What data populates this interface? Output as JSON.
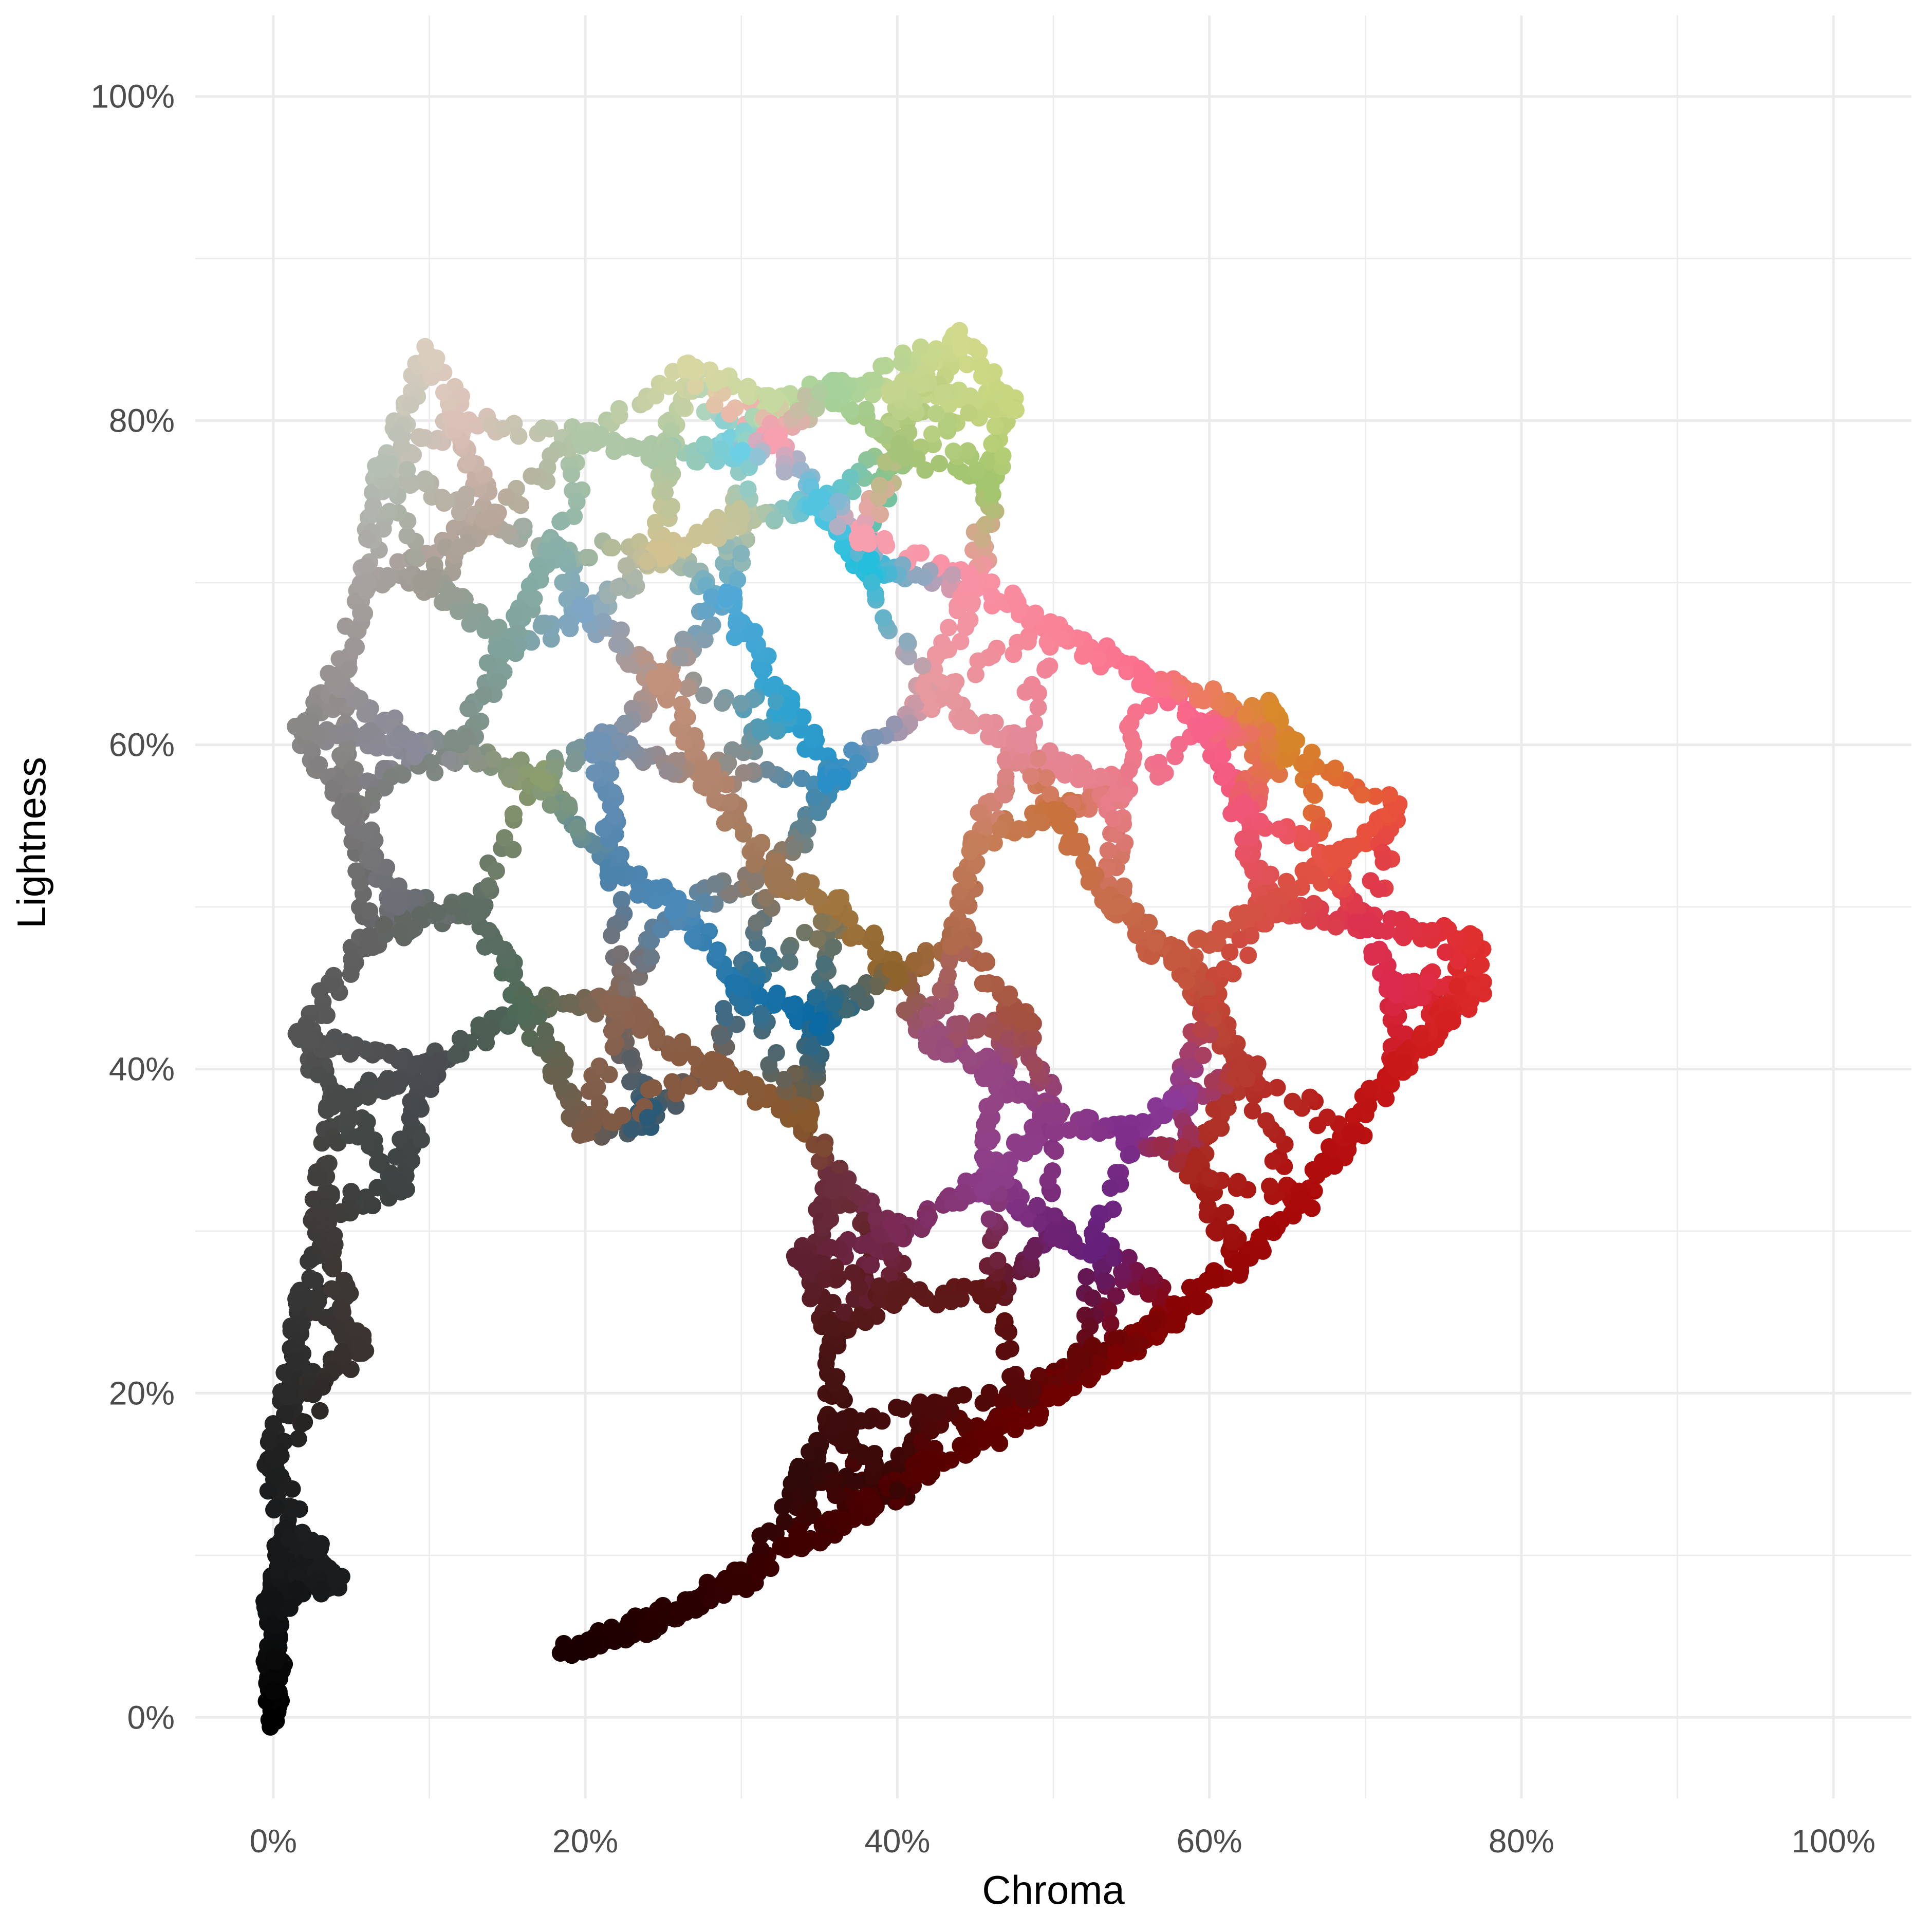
{
  "chart_data": {
    "type": "scatter",
    "title": "",
    "xlabel": "Chroma",
    "ylabel": "Lightness",
    "x_tick_labels": [
      "0%",
      "20%",
      "40%",
      "60%",
      "80%",
      "100%"
    ],
    "y_tick_labels": [
      "0%",
      "20%",
      "40%",
      "60%",
      "80%",
      "100%"
    ],
    "xlim": [
      -0.05,
      1.05
    ],
    "ylim": [
      -0.05,
      1.05
    ],
    "grid": true,
    "legend": "none",
    "point_color_encoding": "each point is filled with the color it represents",
    "series": [
      {
        "points": [
          {
            "x": 0.0,
            "y": 0.0,
            "color": "#000000"
          },
          {
            "x": 0.0,
            "y": 0.016,
            "color": "#050505"
          },
          {
            "x": 0.0,
            "y": 0.037,
            "color": "#0a0a0a"
          },
          {
            "x": 0.0,
            "y": 0.07,
            "color": "#111315"
          },
          {
            "x": 0.005,
            "y": 0.095,
            "color": "#16181a"
          },
          {
            "x": 0.01,
            "y": 0.11,
            "color": "#1a1c1d"
          },
          {
            "x": 0.025,
            "y": 0.105,
            "color": "#1c1d1f"
          },
          {
            "x": 0.04,
            "y": 0.085,
            "color": "#1b1c1e"
          },
          {
            "x": 0.0,
            "y": 0.16,
            "color": "#202020"
          },
          {
            "x": 0.01,
            "y": 0.2,
            "color": "#2a2a2a"
          },
          {
            "x": 0.02,
            "y": 0.26,
            "color": "#353535"
          },
          {
            "x": 0.03,
            "y": 0.31,
            "color": "#3e3b3a"
          },
          {
            "x": 0.055,
            "y": 0.23,
            "color": "#3b3330"
          },
          {
            "x": 0.04,
            "y": 0.38,
            "color": "#474a48"
          },
          {
            "x": 0.02,
            "y": 0.42,
            "color": "#545454"
          },
          {
            "x": 0.06,
            "y": 0.48,
            "color": "#626262"
          },
          {
            "x": 0.05,
            "y": 0.56,
            "color": "#7a7878"
          },
          {
            "x": 0.02,
            "y": 0.61,
            "color": "#8a8787"
          },
          {
            "x": 0.04,
            "y": 0.64,
            "color": "#989393"
          },
          {
            "x": 0.06,
            "y": 0.7,
            "color": "#a7a19f"
          },
          {
            "x": 0.07,
            "y": 0.77,
            "color": "#b6bfb4"
          },
          {
            "x": 0.1,
            "y": 0.84,
            "color": "#d9cdbe"
          },
          {
            "x": 0.12,
            "y": 0.8,
            "color": "#dcc1b8"
          },
          {
            "x": 0.14,
            "y": 0.74,
            "color": "#b9a79b"
          },
          {
            "x": 0.1,
            "y": 0.7,
            "color": "#9e9c92"
          },
          {
            "x": 0.09,
            "y": 0.6,
            "color": "#8a8a9a"
          },
          {
            "x": 0.12,
            "y": 0.6,
            "color": "#7f8d86"
          },
          {
            "x": 0.15,
            "y": 0.66,
            "color": "#7fa39b"
          },
          {
            "x": 0.17,
            "y": 0.58,
            "color": "#8c9d6e"
          },
          {
            "x": 0.08,
            "y": 0.5,
            "color": "#6d6e76"
          },
          {
            "x": 0.13,
            "y": 0.5,
            "color": "#5f6e65"
          },
          {
            "x": 0.16,
            "y": 0.44,
            "color": "#4e6b58"
          },
          {
            "x": 0.1,
            "y": 0.4,
            "color": "#4b4c50"
          },
          {
            "x": 0.08,
            "y": 0.33,
            "color": "#3d4443"
          },
          {
            "x": 0.18,
            "y": 0.72,
            "color": "#88b0a8"
          },
          {
            "x": 0.2,
            "y": 0.79,
            "color": "#b0c7a7"
          },
          {
            "x": 0.25,
            "y": 0.78,
            "color": "#a9c7a4"
          },
          {
            "x": 0.27,
            "y": 0.83,
            "color": "#d8d7a2"
          },
          {
            "x": 0.32,
            "y": 0.81,
            "color": "#c6d9a0"
          },
          {
            "x": 0.36,
            "y": 0.82,
            "color": "#a5d29b"
          },
          {
            "x": 0.4,
            "y": 0.82,
            "color": "#c3d58f"
          },
          {
            "x": 0.44,
            "y": 0.85,
            "color": "#d1d98a"
          },
          {
            "x": 0.47,
            "y": 0.81,
            "color": "#c8d67f"
          },
          {
            "x": 0.4,
            "y": 0.78,
            "color": "#a6c479"
          },
          {
            "x": 0.46,
            "y": 0.76,
            "color": "#a3c56d"
          },
          {
            "x": 0.3,
            "y": 0.78,
            "color": "#6ccfe3"
          },
          {
            "x": 0.35,
            "y": 0.75,
            "color": "#53c4e0"
          },
          {
            "x": 0.38,
            "y": 0.71,
            "color": "#25bfdd"
          },
          {
            "x": 0.29,
            "y": 0.69,
            "color": "#4fa8d6"
          },
          {
            "x": 0.33,
            "y": 0.62,
            "color": "#2ea3cf"
          },
          {
            "x": 0.36,
            "y": 0.58,
            "color": "#298fc6"
          },
          {
            "x": 0.3,
            "y": 0.74,
            "color": "#c4c49b"
          },
          {
            "x": 0.25,
            "y": 0.72,
            "color": "#d2c28f"
          },
          {
            "x": 0.2,
            "y": 0.68,
            "color": "#7fa7c5"
          },
          {
            "x": 0.21,
            "y": 0.6,
            "color": "#6e93b5"
          },
          {
            "x": 0.22,
            "y": 0.52,
            "color": "#4c83ad"
          },
          {
            "x": 0.26,
            "y": 0.5,
            "color": "#4b8ab8"
          },
          {
            "x": 0.3,
            "y": 0.45,
            "color": "#1d74a8"
          },
          {
            "x": 0.35,
            "y": 0.43,
            "color": "#0b6aa3"
          },
          {
            "x": 0.24,
            "y": 0.37,
            "color": "#2b5a77"
          },
          {
            "x": 0.25,
            "y": 0.64,
            "color": "#c3927c"
          },
          {
            "x": 0.28,
            "y": 0.58,
            "color": "#b3856e"
          },
          {
            "x": 0.32,
            "y": 0.52,
            "color": "#9e7654"
          },
          {
            "x": 0.36,
            "y": 0.5,
            "color": "#a0763e"
          },
          {
            "x": 0.4,
            "y": 0.46,
            "color": "#8e642c"
          },
          {
            "x": 0.22,
            "y": 0.44,
            "color": "#8b6551"
          },
          {
            "x": 0.28,
            "y": 0.4,
            "color": "#8a5a3e"
          },
          {
            "x": 0.34,
            "y": 0.37,
            "color": "#87592d"
          },
          {
            "x": 0.2,
            "y": 0.36,
            "color": "#7b5a47"
          },
          {
            "x": 0.32,
            "y": 0.79,
            "color": "#f7a0b0"
          },
          {
            "x": 0.38,
            "y": 0.73,
            "color": "#f79fae"
          },
          {
            "x": 0.45,
            "y": 0.7,
            "color": "#f891a3"
          },
          {
            "x": 0.5,
            "y": 0.67,
            "color": "#f98397"
          },
          {
            "x": 0.56,
            "y": 0.64,
            "color": "#fb6f8c"
          },
          {
            "x": 0.6,
            "y": 0.61,
            "color": "#f7628a"
          },
          {
            "x": 0.42,
            "y": 0.63,
            "color": "#e69a9f"
          },
          {
            "x": 0.48,
            "y": 0.6,
            "color": "#e48997"
          },
          {
            "x": 0.54,
            "y": 0.57,
            "color": "#e87e8a"
          },
          {
            "x": 0.62,
            "y": 0.56,
            "color": "#f05678"
          },
          {
            "x": 0.64,
            "y": 0.62,
            "color": "#d88a2b"
          },
          {
            "x": 0.65,
            "y": 0.6,
            "color": "#d6852a"
          },
          {
            "x": 0.45,
            "y": 0.54,
            "color": "#c57e5a"
          },
          {
            "x": 0.5,
            "y": 0.56,
            "color": "#c8733e"
          },
          {
            "x": 0.54,
            "y": 0.5,
            "color": "#c76e4c"
          },
          {
            "x": 0.58,
            "y": 0.47,
            "color": "#c5593f"
          },
          {
            "x": 0.44,
            "y": 0.48,
            "color": "#b06a4c"
          },
          {
            "x": 0.48,
            "y": 0.43,
            "color": "#a5513f"
          },
          {
            "x": 0.6,
            "y": 0.44,
            "color": "#c24535"
          },
          {
            "x": 0.64,
            "y": 0.5,
            "color": "#d84f45"
          },
          {
            "x": 0.68,
            "y": 0.53,
            "color": "#e55240"
          },
          {
            "x": 0.72,
            "y": 0.56,
            "color": "#e9503c"
          },
          {
            "x": 0.7,
            "y": 0.49,
            "color": "#dc3250"
          },
          {
            "x": 0.72,
            "y": 0.45,
            "color": "#db2a4b"
          },
          {
            "x": 0.62,
            "y": 0.4,
            "color": "#b53a30"
          },
          {
            "x": 0.59,
            "y": 0.34,
            "color": "#a8281f"
          },
          {
            "x": 0.42,
            "y": 0.42,
            "color": "#9a4f79"
          },
          {
            "x": 0.46,
            "y": 0.4,
            "color": "#954682"
          },
          {
            "x": 0.5,
            "y": 0.37,
            "color": "#8e3b86"
          },
          {
            "x": 0.55,
            "y": 0.36,
            "color": "#7f2f8b"
          },
          {
            "x": 0.58,
            "y": 0.38,
            "color": "#8b3a99"
          },
          {
            "x": 0.5,
            "y": 0.3,
            "color": "#6d2273"
          },
          {
            "x": 0.53,
            "y": 0.29,
            "color": "#64207a"
          },
          {
            "x": 0.46,
            "y": 0.33,
            "color": "#8c3d8a"
          },
          {
            "x": 0.36,
            "y": 0.33,
            "color": "#6b2e3c"
          },
          {
            "x": 0.34,
            "y": 0.28,
            "color": "#5e2030"
          },
          {
            "x": 0.4,
            "y": 0.3,
            "color": "#7a2a55"
          },
          {
            "x": 0.36,
            "y": 0.24,
            "color": "#4f1717"
          },
          {
            "x": 0.4,
            "y": 0.26,
            "color": "#5c1a1a"
          },
          {
            "x": 0.46,
            "y": 0.26,
            "color": "#611515"
          },
          {
            "x": 0.36,
            "y": 0.18,
            "color": "#3e0c0c"
          },
          {
            "x": 0.42,
            "y": 0.19,
            "color": "#4a0a0a"
          },
          {
            "x": 0.48,
            "y": 0.2,
            "color": "#560707"
          },
          {
            "x": 0.52,
            "y": 0.22,
            "color": "#640505"
          },
          {
            "x": 0.34,
            "y": 0.15,
            "color": "#300a0a"
          },
          {
            "x": 0.4,
            "y": 0.14,
            "color": "#3a0505"
          },
          {
            "x": 0.19,
            "y": 0.04,
            "color": "#1a0000"
          },
          {
            "x": 0.22,
            "y": 0.05,
            "color": "#200000"
          },
          {
            "x": 0.26,
            "y": 0.065,
            "color": "#2a0000"
          },
          {
            "x": 0.3,
            "y": 0.085,
            "color": "#350000"
          },
          {
            "x": 0.34,
            "y": 0.11,
            "color": "#400000"
          },
          {
            "x": 0.38,
            "y": 0.13,
            "color": "#4a0000"
          },
          {
            "x": 0.42,
            "y": 0.155,
            "color": "#560000"
          },
          {
            "x": 0.46,
            "y": 0.175,
            "color": "#610000"
          },
          {
            "x": 0.5,
            "y": 0.2,
            "color": "#6e0000"
          },
          {
            "x": 0.54,
            "y": 0.225,
            "color": "#7a0202"
          },
          {
            "x": 0.58,
            "y": 0.25,
            "color": "#880404"
          },
          {
            "x": 0.62,
            "y": 0.28,
            "color": "#990606"
          },
          {
            "x": 0.66,
            "y": 0.32,
            "color": "#ab0a0a"
          },
          {
            "x": 0.69,
            "y": 0.36,
            "color": "#b81010"
          },
          {
            "x": 0.72,
            "y": 0.4,
            "color": "#c81818"
          },
          {
            "x": 0.75,
            "y": 0.43,
            "color": "#d42020"
          },
          {
            "x": 0.77,
            "y": 0.45,
            "color": "#dc2b2b"
          },
          {
            "x": 0.77,
            "y": 0.48,
            "color": "#e02f2f"
          }
        ]
      }
    ]
  }
}
